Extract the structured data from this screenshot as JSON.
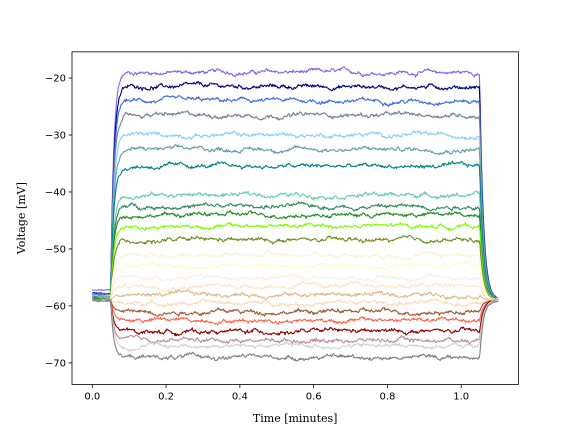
{
  "chart_data": {
    "type": "line",
    "title": "",
    "xlabel": "Time [minutes]",
    "ylabel": "Voltage [mV]",
    "xlim": [
      -0.055,
      1.155
    ],
    "ylim": [
      -73.8,
      -15.4
    ],
    "xticks": [
      0.0,
      0.2,
      0.4,
      0.6,
      0.8,
      1.0
    ],
    "xtick_labels": [
      "0.0",
      "0.2",
      "0.4",
      "0.6",
      "0.8",
      "1.0"
    ],
    "yticks": [
      -70,
      -60,
      -50,
      -40,
      -30,
      -20
    ],
    "ytick_labels": [
      "−70",
      "−60",
      "−50",
      "−40",
      "−30",
      "−20"
    ],
    "grid": false,
    "legend": "none",
    "step_on": 0.05,
    "step_off": 1.05,
    "end": 1.1,
    "baseline_start": -59.0,
    "baseline_end": -59.0,
    "series": [
      {
        "color": "#7b68ee",
        "baseline": -57.3,
        "plateau": -19.0
      },
      {
        "color": "#000080",
        "baseline": -57.8,
        "plateau": -21.5
      },
      {
        "color": "#4169e1",
        "baseline": -58.0,
        "plateau": -24.0
      },
      {
        "color": "#708090",
        "baseline": -58.2,
        "plateau": -26.5
      },
      {
        "color": "#87cefa",
        "baseline": -58.3,
        "plateau": -30.0
      },
      {
        "color": "#5f9ea0",
        "baseline": -58.4,
        "plateau": -32.5
      },
      {
        "color": "#008080",
        "baseline": -58.5,
        "plateau": -35.5
      },
      {
        "color": "#66cdaa",
        "baseline": -58.6,
        "plateau": -40.5
      },
      {
        "color": "#2e8b57",
        "baseline": -58.7,
        "plateau": -42.5
      },
      {
        "color": "#228b22",
        "baseline": -58.8,
        "plateau": -44.0
      },
      {
        "color": "#7cfc00",
        "baseline": -58.9,
        "plateau": -46.0
      },
      {
        "color": "#6b8e23",
        "baseline": -59.0,
        "plateau": -48.5
      },
      {
        "color": "#f5f5dc",
        "baseline": -59.0,
        "plateau": -51.0
      },
      {
        "color": "#fffacd",
        "baseline": -59.0,
        "plateau": -53.0
      },
      {
        "color": "#faf0e6",
        "baseline": -59.0,
        "plateau": -55.0
      },
      {
        "color": "#ffe4c4",
        "baseline": -59.0,
        "plateau": -56.5
      },
      {
        "color": "#deb887",
        "baseline": -59.0,
        "plateau": -58.0
      },
      {
        "color": "#ffdab9",
        "baseline": -59.0,
        "plateau": -59.5
      },
      {
        "color": "#a0522d",
        "baseline": -59.0,
        "plateau": -61.0
      },
      {
        "color": "#ff6347",
        "baseline": -59.0,
        "plateau": -62.5
      },
      {
        "color": "#8b0000",
        "baseline": -59.0,
        "plateau": -64.5
      },
      {
        "color": "#bc8f8f",
        "baseline": -59.0,
        "plateau": -66.0
      },
      {
        "color": "#d3d3d3",
        "baseline": -59.0,
        "plateau": -67.0
      },
      {
        "color": "#808080",
        "baseline": -59.0,
        "plateau": -69.0
      }
    ]
  }
}
